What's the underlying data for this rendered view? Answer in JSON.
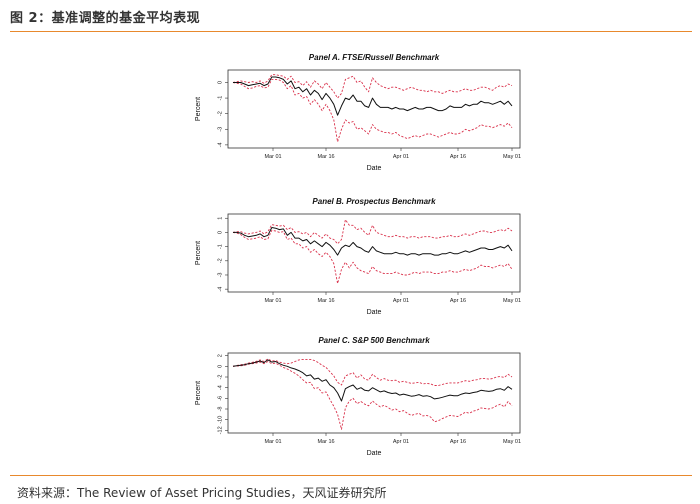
{
  "figure": {
    "title": "图 2：基准调整的基金平均表现",
    "source": "资料来源：The Review of Asset Pricing Studies，天风证券研究所"
  },
  "colors": {
    "accent": "#e8892d",
    "mean": "#111111",
    "band": "#d9304a"
  },
  "chart_data": [
    {
      "type": "line",
      "title": "Panel A. FTSE/Russell Benchmark",
      "xlabel": "Date",
      "ylabel": "Percent",
      "x_ticks": [
        "Mar 01",
        "Mar 16",
        "Apr 01",
        "Apr 16",
        "May 01"
      ],
      "y_ticks": [
        "0",
        "-1",
        "-2",
        "-3",
        "-4"
      ],
      "ylim": [
        -4.2,
        0.8
      ],
      "series": [
        {
          "values": [
            0.0,
            0.0,
            0.0,
            -0.1,
            -0.2,
            -0.15,
            -0.1,
            -0.05,
            -0.2,
            -0.1,
            0.35,
            0.35,
            0.3,
            0.2,
            -0.1,
            0.1,
            -0.4,
            -0.3,
            -0.6,
            -0.4,
            -0.8,
            -0.5,
            -0.7,
            -1.1,
            -0.7,
            -1.0,
            -1.4,
            -2.1,
            -1.5,
            -1.0,
            -1.1,
            -0.8,
            -1.2,
            -1.2,
            -1.5,
            -1.6,
            -1.0,
            -1.4,
            -1.6,
            -1.6,
            -1.6,
            -1.7,
            -1.6,
            -1.7,
            -1.7,
            -1.8,
            -1.7,
            -1.6,
            -1.7,
            -1.7,
            -1.6,
            -1.6,
            -1.7,
            -1.8,
            -1.8,
            -1.7,
            -1.5,
            -1.6,
            -1.6,
            -1.6,
            -1.4,
            -1.5,
            -1.4,
            -1.4,
            -1.2,
            -1.3,
            -1.3,
            -1.4,
            -1.3,
            -1.2,
            -1.4,
            -1.2,
            -1.5
          ]
        },
        {
          "values": [
            0.0,
            0.05,
            0.1,
            0.05,
            0.0,
            0.05,
            0.0,
            0.1,
            -0.05,
            0.1,
            0.5,
            0.5,
            0.45,
            0.4,
            0.2,
            0.4,
            0.0,
            0.05,
            -0.2,
            0.05,
            -0.3,
            0.1,
            -0.1,
            -0.4,
            0.0,
            -0.3,
            -0.6,
            -1.0,
            -0.7,
            0.2,
            0.3,
            0.4,
            0.0,
            0.1,
            -0.3,
            -0.6,
            0.3,
            0.0,
            -0.2,
            -0.3,
            -0.4,
            -0.3,
            -0.3,
            -0.4,
            -0.5,
            -0.4,
            -0.3,
            -0.4,
            -0.5,
            -0.5,
            -0.6,
            -0.5,
            -0.6,
            -0.6,
            -0.7,
            -0.6,
            -0.5,
            -0.6,
            -0.6,
            -0.5,
            -0.4,
            -0.5,
            -0.5,
            -0.4,
            -0.3,
            -0.3,
            -0.4,
            -0.5,
            -0.3,
            -0.2,
            -0.3,
            -0.1,
            -0.2
          ]
        },
        {
          "values": [
            0.0,
            -0.05,
            -0.1,
            -0.25,
            -0.4,
            -0.35,
            -0.25,
            -0.2,
            -0.35,
            -0.3,
            0.2,
            0.2,
            0.15,
            0.0,
            -0.4,
            -0.2,
            -0.8,
            -0.7,
            -1.0,
            -0.9,
            -1.4,
            -1.1,
            -1.4,
            -1.8,
            -1.4,
            -1.8,
            -2.4,
            -3.8,
            -3.0,
            -2.4,
            -2.6,
            -2.5,
            -3.0,
            -2.9,
            -3.1,
            -3.3,
            -2.7,
            -3.0,
            -3.1,
            -3.2,
            -3.2,
            -3.3,
            -3.2,
            -3.4,
            -3.5,
            -3.6,
            -3.5,
            -3.4,
            -3.5,
            -3.4,
            -3.3,
            -3.3,
            -3.4,
            -3.5,
            -3.4,
            -3.3,
            -3.2,
            -3.3,
            -3.3,
            -3.2,
            -3.0,
            -3.1,
            -3.0,
            -2.9,
            -2.7,
            -2.8,
            -2.8,
            -2.9,
            -2.8,
            -2.7,
            -2.8,
            -2.6,
            -2.9
          ]
        }
      ]
    },
    {
      "type": "line",
      "title": "Panel B. Prospectus Benchmark",
      "xlabel": "Date",
      "ylabel": "Percent",
      "x_ticks": [
        "Mar 01",
        "Mar 16",
        "Apr 01",
        "Apr 16",
        "May 01"
      ],
      "y_ticks": [
        "1",
        "0",
        "-1",
        "-2",
        "-3",
        "-4"
      ],
      "ylim": [
        -4.2,
        1.3
      ],
      "series": [
        {
          "values": [
            0.0,
            0.0,
            -0.05,
            -0.2,
            -0.3,
            -0.25,
            -0.2,
            -0.1,
            -0.3,
            -0.2,
            0.35,
            0.3,
            0.2,
            0.25,
            -0.2,
            0.0,
            -0.4,
            -0.4,
            -0.6,
            -0.5,
            -0.8,
            -0.6,
            -0.8,
            -1.0,
            -0.7,
            -0.9,
            -1.2,
            -1.6,
            -1.1,
            -0.9,
            -1.0,
            -0.7,
            -1.0,
            -1.1,
            -1.3,
            -1.4,
            -1.0,
            -1.3,
            -1.4,
            -1.5,
            -1.5,
            -1.5,
            -1.4,
            -1.5,
            -1.5,
            -1.6,
            -1.5,
            -1.5,
            -1.6,
            -1.5,
            -1.5,
            -1.5,
            -1.6,
            -1.6,
            -1.5,
            -1.5,
            -1.4,
            -1.5,
            -1.5,
            -1.4,
            -1.3,
            -1.4,
            -1.3,
            -1.2,
            -1.1,
            -1.1,
            -1.2,
            -1.2,
            -1.1,
            -1.0,
            -1.1,
            -0.9,
            -1.3
          ]
        },
        {
          "values": [
            0.0,
            0.05,
            0.05,
            -0.05,
            -0.1,
            -0.05,
            0.0,
            0.1,
            -0.1,
            0.05,
            0.55,
            0.5,
            0.45,
            0.5,
            0.2,
            0.35,
            0.0,
            0.05,
            -0.1,
            0.0,
            -0.3,
            0.0,
            -0.2,
            -0.4,
            -0.1,
            -0.4,
            -0.5,
            -0.8,
            -0.5,
            0.9,
            0.5,
            0.5,
            0.2,
            0.3,
            0.0,
            -0.2,
            0.5,
            0.0,
            -0.1,
            -0.2,
            -0.3,
            -0.3,
            -0.2,
            -0.3,
            -0.3,
            -0.4,
            -0.3,
            -0.3,
            -0.4,
            -0.3,
            -0.3,
            -0.3,
            -0.4,
            -0.4,
            -0.3,
            -0.3,
            -0.2,
            -0.3,
            -0.3,
            -0.2,
            -0.1,
            -0.2,
            -0.1,
            0.0,
            0.1,
            0.1,
            0.0,
            0.0,
            0.1,
            0.2,
            0.1,
            0.3,
            0.1
          ]
        },
        {
          "values": [
            0.0,
            -0.05,
            -0.15,
            -0.35,
            -0.5,
            -0.45,
            -0.4,
            -0.3,
            -0.5,
            -0.45,
            0.15,
            0.1,
            0.0,
            0.05,
            -0.5,
            -0.4,
            -0.8,
            -0.8,
            -1.1,
            -1.0,
            -1.4,
            -1.2,
            -1.5,
            -1.7,
            -1.4,
            -1.7,
            -2.2,
            -3.6,
            -2.6,
            -2.1,
            -2.5,
            -2.1,
            -2.5,
            -2.7,
            -2.8,
            -2.9,
            -2.4,
            -2.7,
            -2.8,
            -2.9,
            -2.9,
            -2.9,
            -2.8,
            -2.9,
            -3.0,
            -3.0,
            -2.9,
            -2.8,
            -2.9,
            -2.8,
            -2.8,
            -2.8,
            -2.9,
            -2.9,
            -2.8,
            -2.8,
            -2.7,
            -2.8,
            -2.8,
            -2.7,
            -2.6,
            -2.7,
            -2.6,
            -2.5,
            -2.3,
            -2.4,
            -2.4,
            -2.5,
            -2.4,
            -2.3,
            -2.4,
            -2.2,
            -2.6
          ]
        }
      ]
    },
    {
      "type": "line",
      "title": "Panel C. S&P 500 Benchmark",
      "xlabel": "Date",
      "ylabel": "Percent",
      "x_ticks": [
        "Mar 01",
        "Mar 16",
        "Apr 01",
        "Apr 16",
        "May 01"
      ],
      "y_ticks": [
        "2",
        "0",
        "-2",
        "-4",
        "-6",
        "-8",
        "-10",
        "-12"
      ],
      "ylim": [
        -12.5,
        2.5
      ],
      "series": [
        {
          "values": [
            0.0,
            0.1,
            0.2,
            0.3,
            0.5,
            0.6,
            0.8,
            1.0,
            0.7,
            1.2,
            0.8,
            0.9,
            0.5,
            0.2,
            0.0,
            -0.3,
            -0.5,
            -0.8,
            -1.2,
            -1.8,
            -1.6,
            -2.4,
            -2.2,
            -2.8,
            -2.5,
            -3.5,
            -4.0,
            -5.0,
            -6.5,
            -4.2,
            -3.8,
            -3.5,
            -4.3,
            -4.0,
            -4.5,
            -4.6,
            -4.0,
            -4.4,
            -4.8,
            -4.6,
            -4.9,
            -5.1,
            -5.0,
            -5.4,
            -5.2,
            -5.4,
            -5.6,
            -5.5,
            -5.3,
            -5.6,
            -5.5,
            -5.7,
            -6.1,
            -6.0,
            -5.8,
            -5.6,
            -5.4,
            -5.5,
            -5.5,
            -5.2,
            -5.0,
            -5.1,
            -4.9,
            -4.8,
            -4.5,
            -4.6,
            -4.7,
            -4.6,
            -4.3,
            -4.2,
            -4.5,
            -3.8,
            -4.3
          ]
        },
        {
          "values": [
            0.0,
            0.15,
            0.3,
            0.4,
            0.6,
            0.75,
            0.95,
            1.2,
            0.9,
            1.4,
            1.0,
            1.1,
            0.8,
            0.6,
            0.5,
            0.6,
            0.9,
            1.2,
            1.3,
            1.3,
            1.3,
            1.1,
            0.7,
            0.2,
            -0.2,
            -1.0,
            -1.8,
            -3.0,
            -3.5,
            -1.8,
            -1.5,
            -1.2,
            -2.2,
            -1.6,
            -2.4,
            -2.6,
            -1.5,
            -2.1,
            -2.6,
            -2.3,
            -2.6,
            -2.7,
            -2.6,
            -3.0,
            -2.8,
            -3.0,
            -3.2,
            -3.1,
            -3.0,
            -3.3,
            -3.2,
            -3.3,
            -3.6,
            -3.6,
            -3.4,
            -3.2,
            -3.1,
            -3.1,
            -3.1,
            -2.9,
            -2.7,
            -2.8,
            -2.6,
            -2.5,
            -2.3,
            -2.3,
            -2.4,
            -2.3,
            -2.0,
            -1.9,
            -2.1,
            -1.5,
            -2.0
          ]
        },
        {
          "values": [
            0.0,
            0.05,
            0.1,
            0.2,
            0.4,
            0.5,
            0.6,
            0.8,
            0.5,
            0.9,
            0.5,
            0.6,
            0.2,
            -0.2,
            -0.5,
            -0.9,
            -1.3,
            -1.8,
            -2.5,
            -3.1,
            -3.0,
            -4.2,
            -4.0,
            -5.0,
            -4.8,
            -6.2,
            -7.5,
            -9.0,
            -11.8,
            -7.8,
            -6.5,
            -6.0,
            -7.0,
            -6.6,
            -7.1,
            -7.4,
            -6.5,
            -7.1,
            -7.6,
            -7.3,
            -7.7,
            -8.2,
            -8.0,
            -8.5,
            -8.3,
            -8.8,
            -9.2,
            -9.0,
            -8.8,
            -9.3,
            -9.2,
            -9.5,
            -10.4,
            -10.2,
            -9.8,
            -9.5,
            -9.2,
            -9.3,
            -9.4,
            -9.0,
            -8.6,
            -8.8,
            -8.4,
            -8.2,
            -7.8,
            -7.9,
            -8.0,
            -7.8,
            -7.4,
            -7.1,
            -7.6,
            -6.6,
            -7.4
          ]
        }
      ]
    }
  ]
}
